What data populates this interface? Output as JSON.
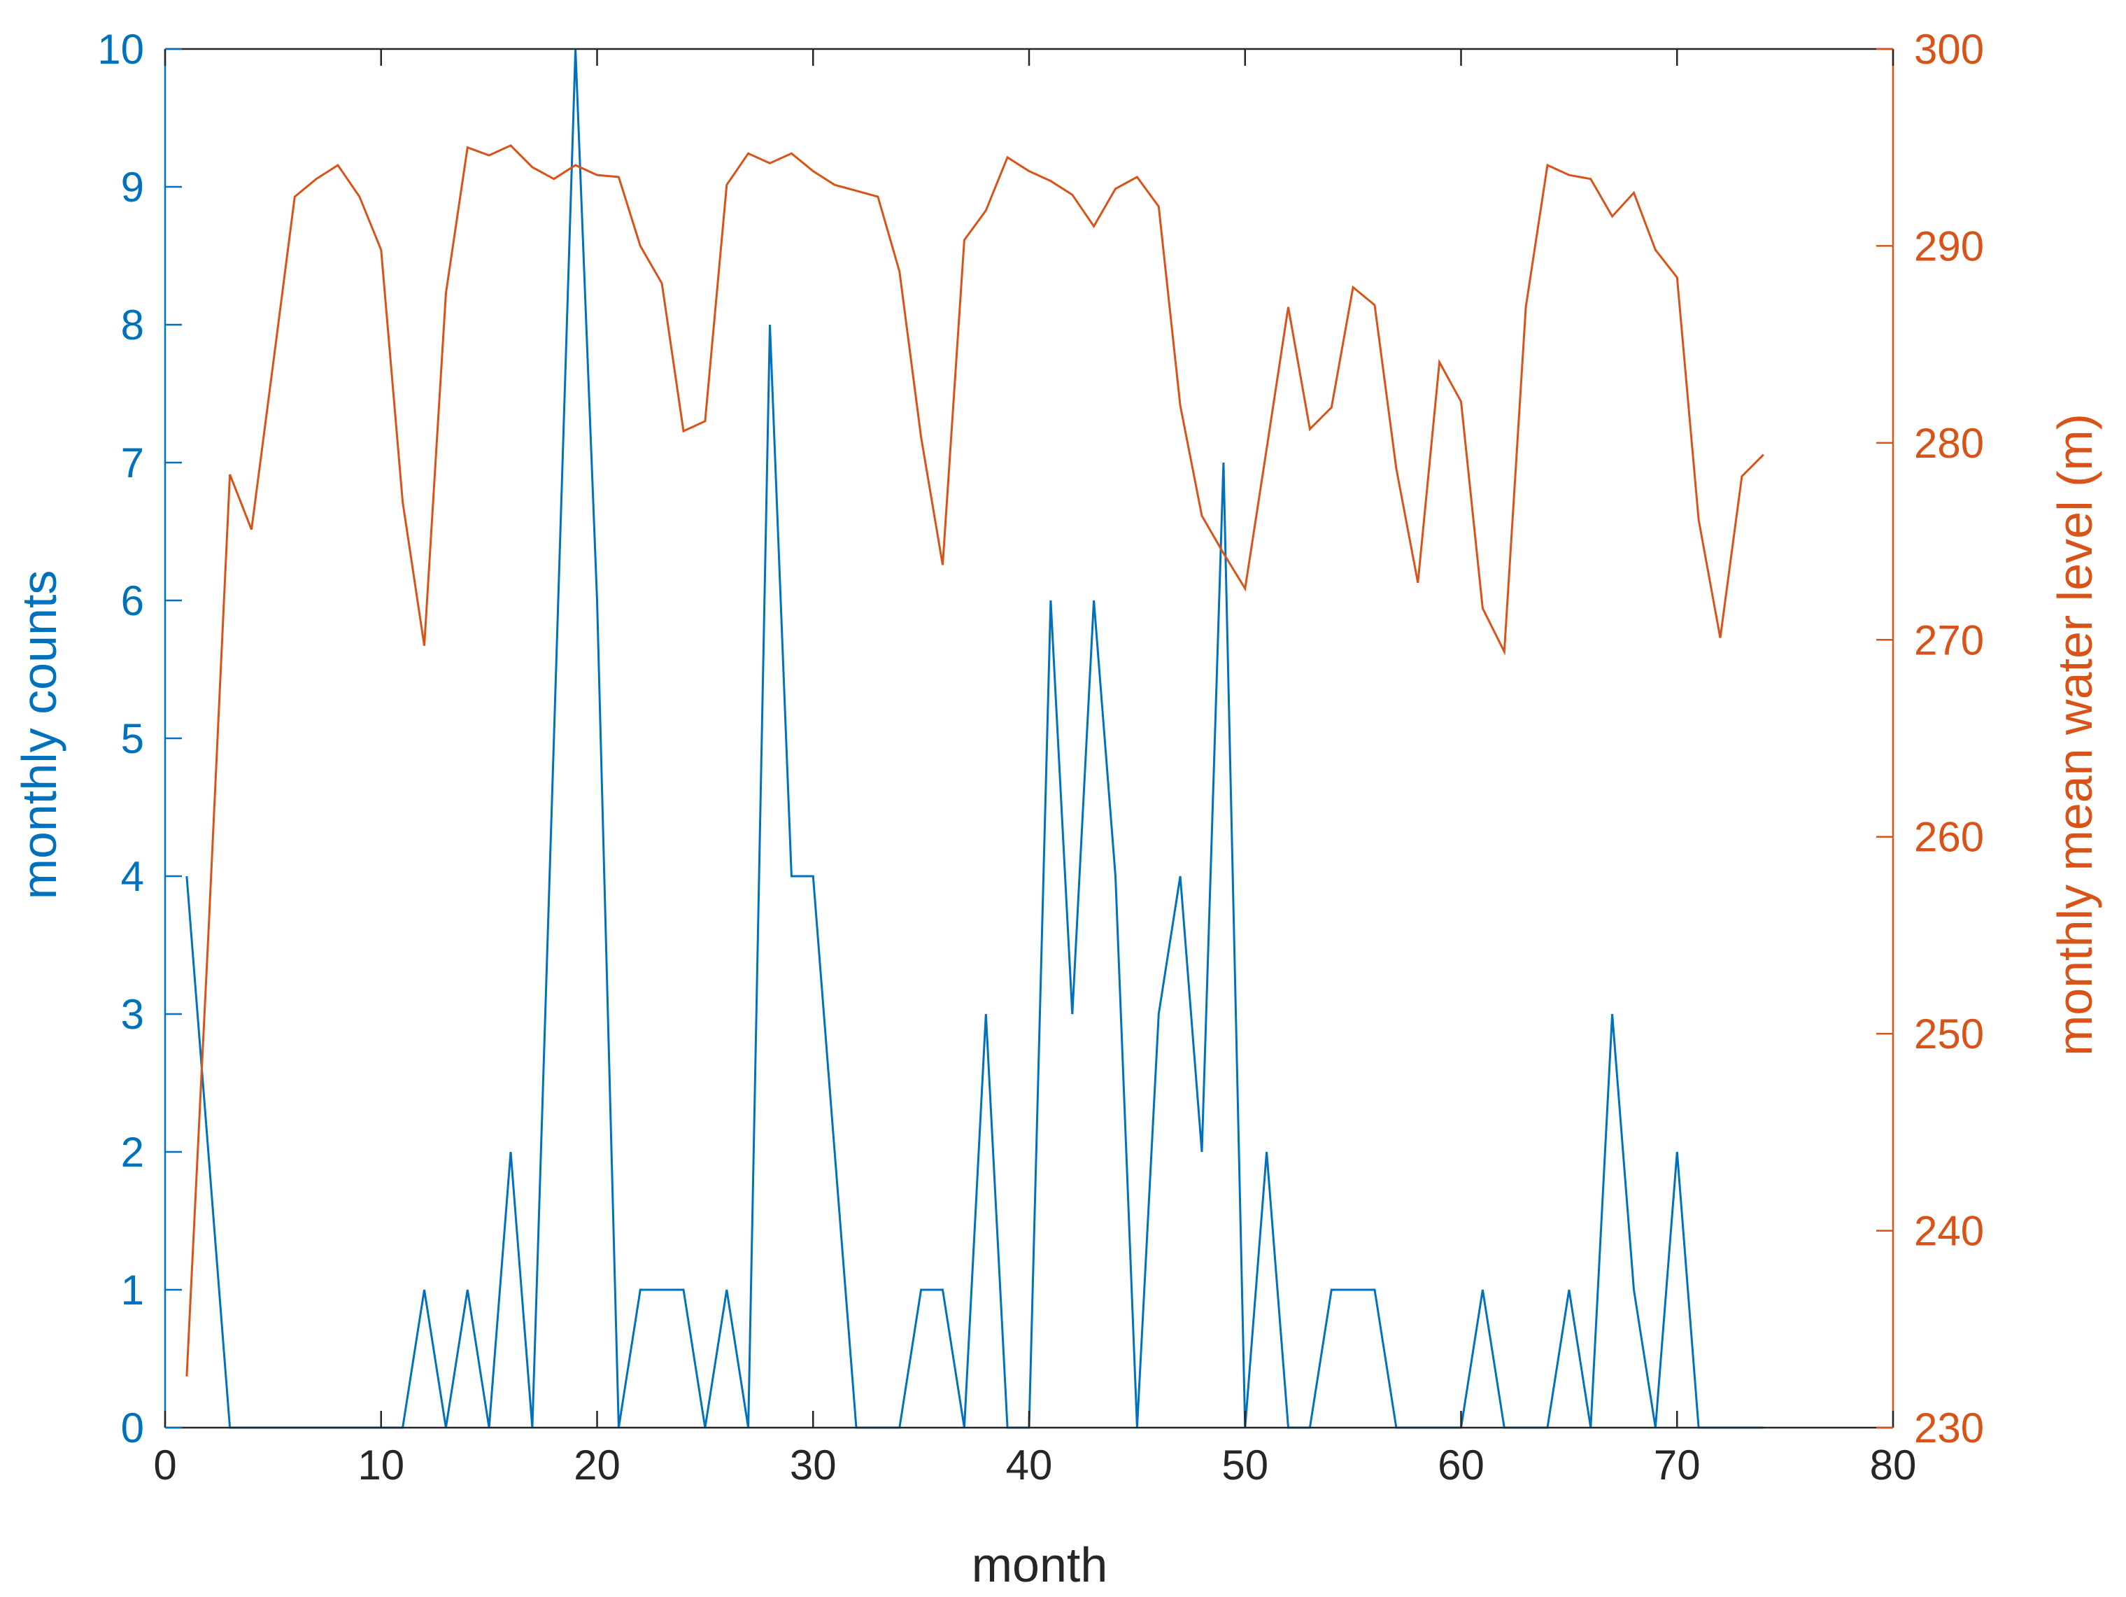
{
  "chart_data": {
    "type": "line",
    "xlabel": "month",
    "ylabel_left": "monthly counts",
    "ylabel_right": "monthly mean water level (m)",
    "xlim": [
      0,
      80
    ],
    "ylim_left": [
      0,
      10
    ],
    "ylim_right": [
      230,
      300
    ],
    "xticks": [
      0,
      10,
      20,
      30,
      40,
      50,
      60,
      70,
      80
    ],
    "yticks_left": [
      0,
      1,
      2,
      3,
      4,
      5,
      6,
      7,
      8,
      9,
      10
    ],
    "yticks_right": [
      230,
      240,
      250,
      260,
      270,
      280,
      290,
      300
    ],
    "grid": false,
    "colors": {
      "left": "#0072BD",
      "right": "#D95319",
      "frame": "#262626"
    },
    "series": [
      {
        "axis": "left",
        "color": "#0072BD",
        "x": [
          1,
          2,
          3,
          4,
          5,
          6,
          7,
          8,
          9,
          10,
          11,
          12,
          13,
          14,
          15,
          16,
          17,
          18,
          19,
          20,
          21,
          22,
          23,
          24,
          25,
          26,
          27,
          28,
          29,
          30,
          31,
          32,
          33,
          34,
          35,
          36,
          37,
          38,
          39,
          40,
          41,
          42,
          43,
          44,
          45,
          46,
          47,
          48,
          49,
          50,
          51,
          52,
          53,
          54,
          55,
          56,
          57,
          58,
          59,
          60,
          61,
          62,
          63,
          64,
          65,
          66,
          67,
          68,
          69,
          70,
          71,
          72,
          73,
          74
        ],
        "values": [
          4,
          2,
          0,
          0,
          0,
          0,
          0,
          0,
          0,
          0,
          0,
          1,
          0,
          1,
          0,
          2,
          0,
          5,
          10,
          6,
          0,
          1,
          1,
          1,
          0,
          1,
          0,
          8,
          4,
          4,
          2,
          0,
          0,
          0,
          1,
          1,
          0,
          3,
          0,
          0,
          6,
          3,
          6,
          4,
          0,
          3,
          4,
          2,
          7,
          0,
          2,
          0,
          0,
          1,
          1,
          1,
          0,
          0,
          0,
          0,
          1,
          0,
          0,
          0,
          1,
          0,
          3,
          1,
          0,
          2,
          0,
          0,
          0,
          0
        ]
      },
      {
        "axis": "right",
        "color": "#D95319",
        "x": [
          1,
          2,
          3,
          4,
          5,
          6,
          7,
          8,
          9,
          10,
          11,
          12,
          13,
          14,
          15,
          16,
          17,
          18,
          19,
          20,
          21,
          22,
          23,
          24,
          25,
          26,
          27,
          28,
          29,
          30,
          31,
          32,
          33,
          34,
          35,
          36,
          37,
          38,
          39,
          40,
          41,
          42,
          43,
          44,
          45,
          46,
          47,
          48,
          49,
          50,
          51,
          52,
          53,
          54,
          55,
          56,
          57,
          58,
          59,
          60,
          61,
          62,
          63,
          64,
          65,
          66,
          67,
          68,
          69,
          70,
          71,
          72,
          73,
          74
        ],
        "values": [
          232.6,
          255,
          278.4,
          275.6,
          284,
          292.5,
          293.4,
          294.1,
          292.5,
          289.8,
          277,
          269.7,
          287.6,
          295,
          294.6,
          295.1,
          294,
          293.4,
          294.1,
          293.6,
          293.5,
          290,
          288.1,
          280.6,
          281.1,
          293.1,
          294.7,
          294.2,
          294.7,
          293.8,
          293.1,
          292.8,
          292.5,
          288.7,
          280.3,
          273.8,
          290.3,
          291.8,
          294.5,
          293.8,
          293.3,
          292.6,
          291,
          292.9,
          293.5,
          292,
          281.9,
          276.3,
          274.4,
          272.6,
          279.7,
          286.9,
          280.7,
          281.8,
          287.9,
          287,
          278.7,
          272.9,
          284.1,
          282.1,
          271.6,
          269.4,
          286.9,
          294.1,
          293.6,
          293.4,
          291.5,
          292.7,
          289.8,
          288.4,
          276.1,
          270.1,
          278.3,
          279.4
        ]
      }
    ]
  }
}
